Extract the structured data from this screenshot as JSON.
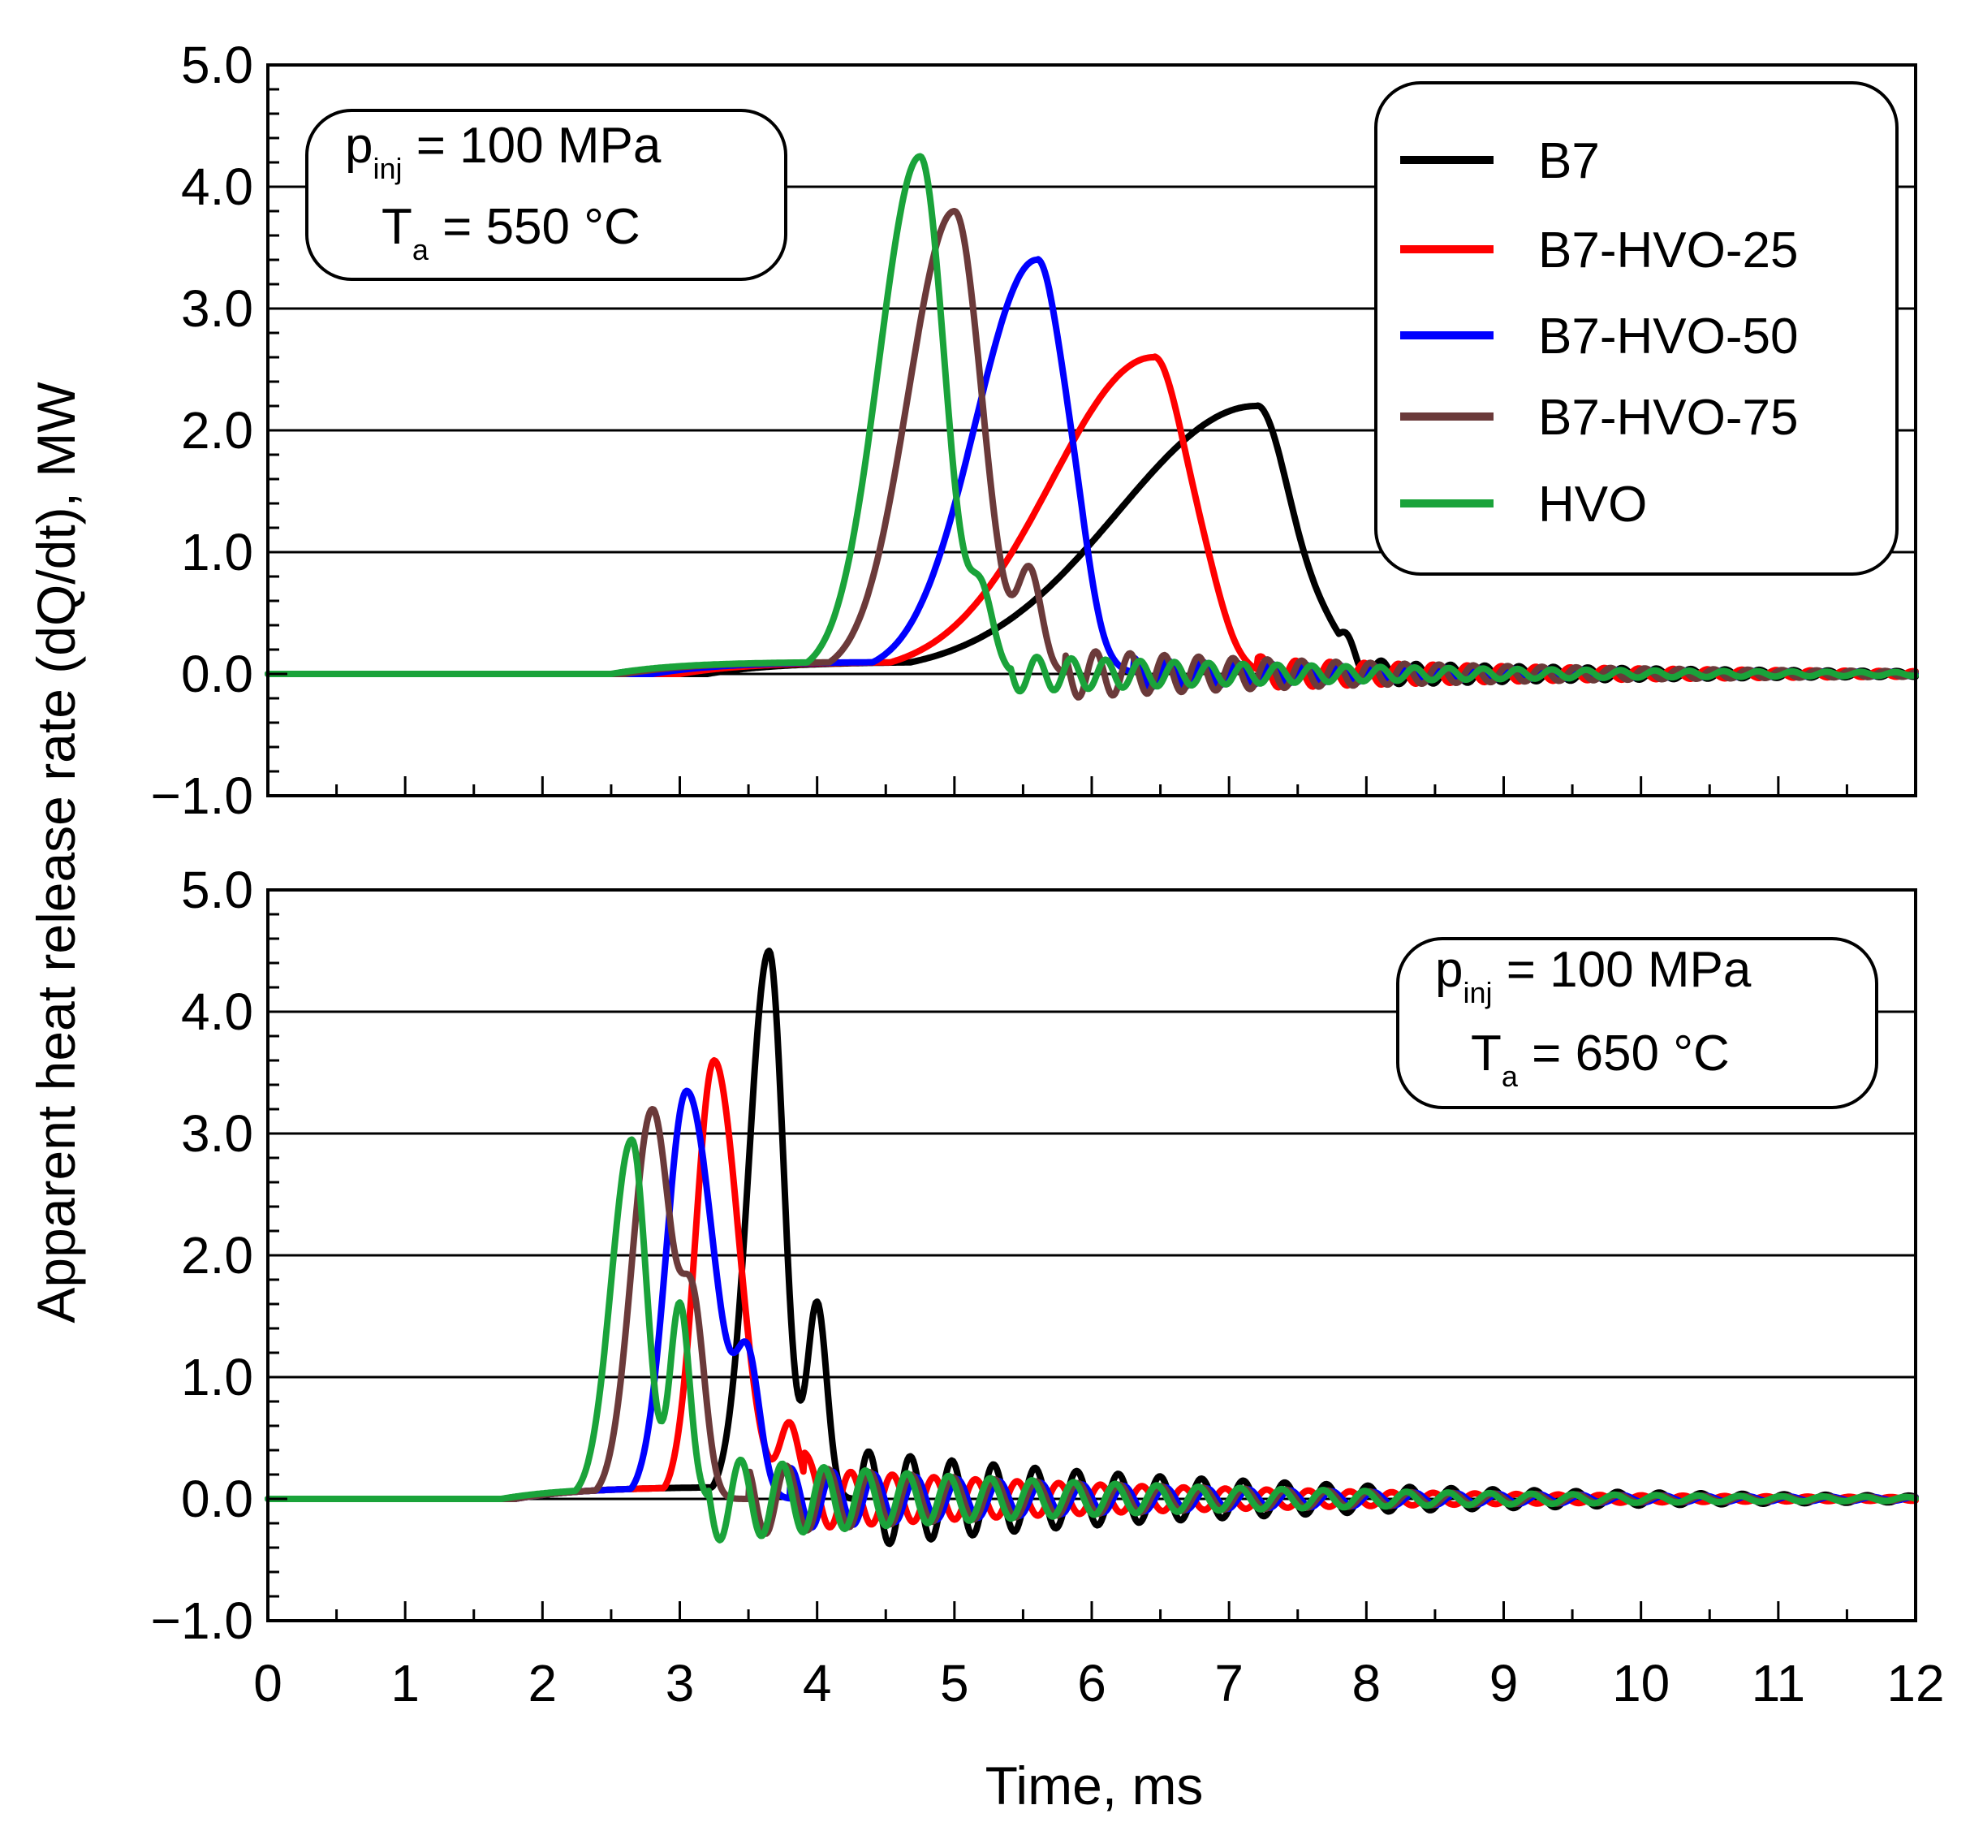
{
  "figure": {
    "ylabel": "Apparent heat release rate (dQ/dt), MW",
    "xlabel": "Time, ms",
    "x_ticks": [
      "0",
      "1",
      "2",
      "3",
      "4",
      "5",
      "6",
      "7",
      "8",
      "9",
      "10",
      "11",
      "12"
    ],
    "y_ticks": [
      "5.0",
      "4.0",
      "3.0",
      "2.0",
      "1.0",
      "0.0",
      "−1.0"
    ]
  },
  "legend": {
    "items": [
      {
        "label": "B7",
        "color": "#000000"
      },
      {
        "label": "B7-HVO-25",
        "color": "#ff0000"
      },
      {
        "label": "B7-HVO-50",
        "color": "#0000ff"
      },
      {
        "label": "B7-HVO-75",
        "color": "#6b3a3a"
      },
      {
        "label": "HVO",
        "color": "#1aa33a"
      }
    ]
  },
  "panels": [
    {
      "p_symbol": "p",
      "p_sub": "inj",
      "p_text": " = 100 MPa",
      "t_symbol": "T",
      "t_sub": "a",
      "t_text": " = 550 °C"
    },
    {
      "p_symbol": "p",
      "p_sub": "inj",
      "p_text": " = 100 MPa",
      "t_symbol": "T",
      "t_sub": "a",
      "t_text": " = 650 °C"
    }
  ],
  "chart_data": [
    {
      "type": "line",
      "title": "p_inj = 100 MPa, T_a = 550 °C",
      "xlabel": "Time, ms",
      "ylabel": "Apparent heat release rate (dQ/dt), MW",
      "xlim": [
        0,
        12
      ],
      "ylim": [
        -1.0,
        5.0
      ],
      "grid": "horizontal",
      "legend_position": "top-right",
      "series": [
        {
          "name": "B7",
          "color": "#000000",
          "peak_time": 7.2,
          "peak": 2.2,
          "rise_start": 3.2,
          "rise_width": 1.35,
          "fall_width": 0.35,
          "shoulder": {
            "t": 7.7,
            "h": 0.25,
            "w": 0.25
          },
          "osc_amp": 0.1,
          "osc_freq": 4.0,
          "osc_start": 7.8
        },
        {
          "name": "B7-HVO-25",
          "color": "#ff0000",
          "peak_time": 6.45,
          "peak": 2.6,
          "rise_start": 3.0,
          "rise_width": 1.0,
          "fall_width": 0.35,
          "shoulder": {
            "t": 6.85,
            "h": 0.3,
            "w": 0.2
          },
          "osc_amp": 0.12,
          "osc_freq": 4.0,
          "osc_start": 7.2
        },
        {
          "name": "B7-HVO-50",
          "color": "#0000ff",
          "peak_time": 5.6,
          "peak": 3.4,
          "rise_start": 2.8,
          "rise_width": 0.6,
          "fall_width": 0.3,
          "shoulder": {
            "t": 5.9,
            "h": 0.35,
            "w": 0.15
          },
          "osc_amp": 0.12,
          "osc_freq": 4.0,
          "osc_start": 6.3
        },
        {
          "name": "B7-HVO-75",
          "color": "#6b3a3a",
          "peak_time": 5.0,
          "peak": 3.8,
          "rise_start": 2.6,
          "rise_width": 0.45,
          "fall_width": 0.28,
          "shoulder": {
            "t": 5.55,
            "h": 0.8,
            "w": 0.12
          },
          "osc_amp": 0.2,
          "osc_freq": 4.0,
          "osc_start": 5.8
        },
        {
          "name": "HVO",
          "color": "#1aa33a",
          "peak_time": 4.75,
          "peak": 4.25,
          "rise_start": 2.5,
          "rise_width": 0.4,
          "fall_width": 0.25,
          "shoulder": {
            "t": 5.2,
            "h": 0.6,
            "w": 0.12
          },
          "osc_amp": 0.15,
          "osc_freq": 4.0,
          "osc_start": 5.4
        }
      ]
    },
    {
      "type": "line",
      "title": "p_inj = 100 MPa, T_a = 650 °C",
      "xlabel": "Time, ms",
      "ylabel": "Apparent heat release rate (dQ/dt), MW",
      "xlim": [
        0,
        12
      ],
      "ylim": [
        -1.0,
        5.0
      ],
      "grid": "horizontal",
      "legend_position": "top-right",
      "series": [
        {
          "name": "B7",
          "color": "#000000",
          "peak_time": 3.65,
          "peak": 4.5,
          "rise_start": 1.8,
          "rise_width": 0.2,
          "fall_width": 0.15,
          "shoulder": {
            "t": 4.0,
            "h": 1.6,
            "w": 0.1
          },
          "osc_amp": 0.4,
          "osc_freq": 3.3,
          "osc_start": 4.3
        },
        {
          "name": "B7-HVO-25",
          "color": "#ff0000",
          "peak_time": 3.25,
          "peak": 3.6,
          "rise_start": 1.8,
          "rise_width": 0.18,
          "fall_width": 0.25,
          "shoulder": {
            "t": 3.8,
            "h": 0.6,
            "w": 0.1
          },
          "osc_amp": 0.25,
          "osc_freq": 3.3,
          "osc_start": 3.9
        },
        {
          "name": "B7-HVO-50",
          "color": "#0000ff",
          "peak_time": 3.05,
          "peak": 3.35,
          "rise_start": 1.8,
          "rise_width": 0.2,
          "fall_width": 0.28,
          "shoulder": {
            "t": 3.5,
            "h": 1.0,
            "w": 0.12
          },
          "osc_amp": 0.25,
          "osc_freq": 3.3,
          "osc_start": 3.8
        },
        {
          "name": "B7-HVO-75",
          "color": "#6b3a3a",
          "peak_time": 2.8,
          "peak": 3.2,
          "rise_start": 1.8,
          "rise_width": 0.2,
          "fall_width": 0.2,
          "shoulder": {
            "t": 3.1,
            "h": 1.4,
            "w": 0.12
          },
          "osc_amp": 0.3,
          "osc_freq": 3.3,
          "osc_start": 3.5
        },
        {
          "name": "HVO",
          "color": "#1aa33a",
          "peak_time": 2.65,
          "peak": 2.95,
          "rise_start": 1.7,
          "rise_width": 0.2,
          "fall_width": 0.15,
          "shoulder": {
            "t": 3.0,
            "h": 1.6,
            "w": 0.1
          },
          "osc_amp": 0.35,
          "osc_freq": 3.3,
          "osc_start": 3.2
        }
      ]
    }
  ]
}
